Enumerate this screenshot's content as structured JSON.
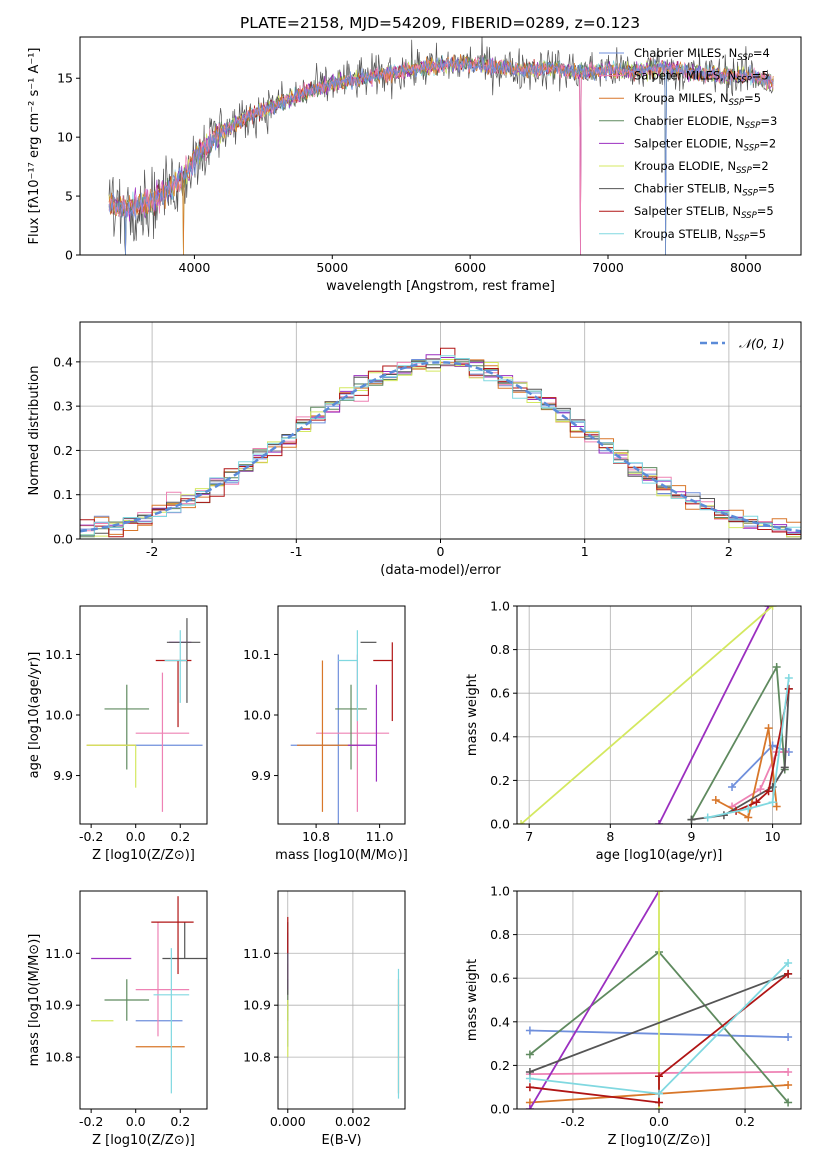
{
  "figure_title": "PLATE=2158, MJD=54209, FIBERID=0289, z=0.123",
  "legend": [
    {
      "label": "Chabrier MILES, N",
      "sub": "SSP",
      "tail": "=4",
      "color": "#6f8fdc"
    },
    {
      "label": "Salpeter MILES, N",
      "sub": "SSP",
      "tail": "=5",
      "color": "#ee82b4"
    },
    {
      "label": "Kroupa MILES, N",
      "sub": "SSP",
      "tail": "=5",
      "color": "#d8772a"
    },
    {
      "label": "Chabrier ELODIE, N",
      "sub": "SSP",
      "tail": "=3",
      "color": "#5f8a5f"
    },
    {
      "label": "Salpeter ELODIE, N",
      "sub": "SSP",
      "tail": "=2",
      "color": "#9b2fc0"
    },
    {
      "label": "Kroupa ELODIE, N",
      "sub": "SSP",
      "tail": "=2",
      "color": "#d4e860"
    },
    {
      "label": "Chabrier STELIB, N",
      "sub": "SSP",
      "tail": "=5",
      "color": "#555555"
    },
    {
      "label": "Salpeter STELIB, N",
      "sub": "SSP",
      "tail": "=5",
      "color": "#b01515"
    },
    {
      "label": "Kroupa STELIB, N",
      "sub": "SSP",
      "tail": "=5",
      "color": "#80d8e0"
    }
  ],
  "chart_data": [
    {
      "type": "line",
      "title": "PLATE=2158, MJD=54209, FIBERID=0289, z=0.123",
      "xlabel": "wavelength [Angstrom, rest frame]",
      "ylabel": "Flux [fλ10⁻¹⁷ erg cm⁻² s⁻¹ A⁻¹]",
      "xlim": [
        3170,
        8400
      ],
      "ylim": [
        0,
        18.5
      ],
      "xticks": [
        4000,
        5000,
        6000,
        7000,
        8000
      ],
      "yticks": [
        0,
        5,
        10,
        15
      ],
      "continuum": {
        "x": [
          3380,
          3500,
          3700,
          3900,
          4000,
          4200,
          4400,
          4600,
          4800,
          5000,
          5200,
          5400,
          5600,
          5800,
          6000,
          6200,
          6400,
          6600,
          6800,
          7000,
          7200,
          7400,
          7600,
          7800,
          8000,
          8200
        ],
        "y": [
          4.3,
          4.0,
          4.5,
          6.4,
          8.2,
          10.5,
          11.8,
          12.8,
          13.8,
          14.5,
          15.0,
          15.4,
          15.8,
          16.1,
          16.3,
          15.9,
          15.7,
          15.9,
          15.5,
          15.7,
          15.6,
          15.9,
          15.5,
          15.2,
          15.3,
          14.6
        ]
      },
      "dips": [
        {
          "x": 3500,
          "y": 0
        },
        {
          "x": 3920,
          "y": 0
        },
        {
          "x": 6800,
          "y": 0
        },
        {
          "x": 7420,
          "y": 0
        }
      ],
      "series_count": 9
    },
    {
      "type": "histogram",
      "xlabel": "(data-model)/error",
      "ylabel": "Normed distribution",
      "xlim": [
        -2.5,
        2.5
      ],
      "ylim": [
        0,
        0.49
      ],
      "xticks": [
        -2,
        -1,
        0,
        1,
        2
      ],
      "yticks": [
        0.0,
        0.1,
        0.2,
        0.3,
        0.4
      ],
      "grid": true,
      "legend": "upper right",
      "reference": {
        "label": "𝒩(0, 1)",
        "mean": 0,
        "sigma": 1,
        "color": "#5b8bd8"
      },
      "bin_width": 0.1,
      "series_count": 9
    },
    {
      "type": "errorbar",
      "xlabel": "Z [log10(Z/Z⊙)]",
      "ylabel": "age [log10(age/yr)]",
      "xlim": [
        -0.25,
        0.32
      ],
      "ylim": [
        9.82,
        10.18
      ],
      "xticks": [
        -0.2,
        0.0,
        0.2
      ],
      "yticks": [
        9.9,
        10.0,
        10.1
      ],
      "points": [
        {
          "x": 0.07,
          "y": 9.95,
          "xerr": [
            0.23,
            0.23
          ],
          "yerr": [
            0.0,
            0.0
          ],
          "color": "#6f8fdc"
        },
        {
          "x": 0.12,
          "y": 9.97,
          "xerr": [
            0.12,
            0.12
          ],
          "yerr": [
            0.13,
            0.1
          ],
          "color": "#ee82b4"
        },
        {
          "x": 0.0,
          "y": 9.95,
          "xerr": [
            0.22,
            0.0
          ],
          "yerr": [
            0.0,
            0.0
          ],
          "color": "#d8772a"
        },
        {
          "x": -0.04,
          "y": 10.01,
          "xerr": [
            0.1,
            0.1
          ],
          "yerr": [
            0.1,
            0.04
          ],
          "color": "#5f8a5f"
        },
        {
          "x": 0.2,
          "y": 10.12,
          "xerr": [
            0.05,
            0.05
          ],
          "yerr": [
            0.0,
            0.0
          ],
          "color": "#9b2fc0"
        },
        {
          "x": 0.0,
          "y": 9.95,
          "xerr": [
            0.22,
            0.0
          ],
          "yerr": [
            0.07,
            0.0
          ],
          "color": "#d4e860"
        },
        {
          "x": 0.23,
          "y": 10.12,
          "xerr": [
            0.09,
            0.06
          ],
          "yerr": [
            0.1,
            0.04
          ],
          "color": "#555555"
        },
        {
          "x": 0.19,
          "y": 10.09,
          "xerr": [
            0.1,
            0.06
          ],
          "yerr": [
            0.11,
            0.0
          ],
          "color": "#b01515"
        },
        {
          "x": 0.2,
          "y": 10.09,
          "xerr": [
            0.07,
            0.03
          ],
          "yerr": [
            0.07,
            0.05
          ],
          "color": "#80d8e0"
        }
      ]
    },
    {
      "type": "errorbar",
      "xlabel": "mass [log10(M/M⊙)]",
      "ylabel": "",
      "xlim": [
        10.68,
        11.08
      ],
      "ylim": [
        9.82,
        10.18
      ],
      "xticks": [
        10.8,
        11.0
      ],
      "yticks": [
        9.9,
        10.0,
        10.1
      ],
      "points": [
        {
          "x": 10.87,
          "y": 9.95,
          "xerr": [
            0.15,
            0.1
          ],
          "yerr": [
            0.15,
            0.15
          ],
          "color": "#6f8fdc"
        },
        {
          "x": 10.93,
          "y": 9.97,
          "xerr": [
            0.13,
            0.1
          ],
          "yerr": [
            0.13,
            0.13
          ],
          "color": "#ee82b4"
        },
        {
          "x": 10.82,
          "y": 9.95,
          "xerr": [
            0.08,
            0.11
          ],
          "yerr": [
            0.11,
            0.14
          ],
          "color": "#d8772a"
        },
        {
          "x": 10.91,
          "y": 10.01,
          "xerr": [
            0.05,
            0.05
          ],
          "yerr": [
            0.1,
            0.04
          ],
          "color": "#5f8a5f"
        },
        {
          "x": 10.99,
          "y": 9.95,
          "xerr": [
            0.09,
            0.0
          ],
          "yerr": [
            0.06,
            0.1
          ],
          "color": "#9b2fc0"
        },
        {
          "x": 10.87,
          "y": 9.95,
          "xerr": [
            0.0,
            0.0
          ],
          "yerr": [
            0.0,
            0.0
          ],
          "color": "#d4e860"
        },
        {
          "x": 10.99,
          "y": 10.12,
          "xerr": [
            0.05,
            0.0
          ],
          "yerr": [
            0.0,
            0.0
          ],
          "color": "#555555"
        },
        {
          "x": 11.04,
          "y": 10.09,
          "xerr": [
            0.06,
            0.0
          ],
          "yerr": [
            0.1,
            0.03
          ],
          "color": "#b01515"
        },
        {
          "x": 10.93,
          "y": 10.09,
          "xerr": [
            0.06,
            0.0
          ],
          "yerr": [
            0.1,
            0.05
          ],
          "color": "#80d8e0"
        }
      ]
    },
    {
      "type": "line",
      "xlabel": "age [log10(age/yr)]",
      "ylabel": "mass weight",
      "xlim": [
        6.85,
        10.35
      ],
      "ylim": [
        0,
        1
      ],
      "xticks": [
        7,
        8,
        9,
        10
      ],
      "yticks": [
        0.0,
        0.2,
        0.4,
        0.6,
        0.8,
        1.0
      ],
      "grid": true,
      "series": [
        {
          "color": "#6f8fdc",
          "x": [
            9.5,
            10.0,
            10.2
          ],
          "y": [
            0.17,
            0.36,
            0.33
          ]
        },
        {
          "color": "#ee82b4",
          "x": [
            9.5,
            9.85,
            10.05,
            10.15
          ],
          "y": [
            0.08,
            0.16,
            0.33,
            0.33
          ]
        },
        {
          "color": "#d8772a",
          "x": [
            9.3,
            9.7,
            9.95,
            10.05
          ],
          "y": [
            0.11,
            0.03,
            0.44,
            0.08
          ]
        },
        {
          "color": "#5f8a5f",
          "x": [
            9.0,
            10.05,
            10.15
          ],
          "y": [
            0.02,
            0.72,
            0.25
          ]
        },
        {
          "color": "#9b2fc0",
          "x": [
            8.6,
            9.95
          ],
          "y": [
            0.0,
            1.0
          ]
        },
        {
          "color": "#d4e860",
          "x": [
            6.9,
            10.0
          ],
          "y": [
            0.0,
            1.0
          ]
        },
        {
          "color": "#555555",
          "x": [
            9.0,
            9.4,
            10.0,
            10.15,
            10.2
          ],
          "y": [
            0.02,
            0.04,
            0.17,
            0.26,
            0.62
          ]
        },
        {
          "color": "#b01515",
          "x": [
            9.55,
            9.8,
            9.95,
            10.2
          ],
          "y": [
            0.06,
            0.1,
            0.15,
            0.62
          ]
        },
        {
          "color": "#80d8e0",
          "x": [
            9.2,
            9.7,
            10.0,
            10.2
          ],
          "y": [
            0.03,
            0.07,
            0.1,
            0.67
          ]
        }
      ]
    },
    {
      "type": "errorbar",
      "xlabel": "Z [log10(Z/Z⊙)]",
      "ylabel": "mass [log10(M/M⊙)]",
      "xlim": [
        -0.25,
        0.32
      ],
      "ylim": [
        10.7,
        11.12
      ],
      "xticks": [
        -0.2,
        0.0,
        0.2
      ],
      "yticks": [
        10.8,
        10.9,
        11.0
      ],
      "points": [
        {
          "x": 0.07,
          "y": 10.87,
          "xerr": [
            0.07,
            0.14
          ],
          "yerr": [
            0.0,
            0.0
          ],
          "color": "#6f8fdc"
        },
        {
          "x": 0.1,
          "y": 10.93,
          "xerr": [
            0.1,
            0.14
          ],
          "yerr": [
            0.09,
            0.13
          ],
          "color": "#ee82b4"
        },
        {
          "x": 0.0,
          "y": 10.82,
          "xerr": [
            0.0,
            0.22
          ],
          "yerr": [
            0.0,
            0.0
          ],
          "color": "#d8772a"
        },
        {
          "x": -0.04,
          "y": 10.91,
          "xerr": [
            0.1,
            0.1
          ],
          "yerr": [
            0.04,
            0.04
          ],
          "color": "#5f8a5f"
        },
        {
          "x": -0.1,
          "y": 10.99,
          "xerr": [
            0.1,
            0.08
          ],
          "yerr": [
            0.0,
            0.0
          ],
          "color": "#9b2fc0"
        },
        {
          "x": -0.1,
          "y": 10.87,
          "xerr": [
            0.1,
            0.0
          ],
          "yerr": [
            0.0,
            0.0
          ],
          "color": "#d4e860"
        },
        {
          "x": 0.22,
          "y": 10.99,
          "xerr": [
            0.1,
            0.1
          ],
          "yerr": [
            0.0,
            0.07
          ],
          "color": "#555555"
        },
        {
          "x": 0.19,
          "y": 11.06,
          "xerr": [
            0.12,
            0.07
          ],
          "yerr": [
            0.1,
            0.05
          ],
          "color": "#b01515"
        },
        {
          "x": 0.16,
          "y": 10.92,
          "xerr": [
            0.08,
            0.08
          ],
          "yerr": [
            0.19,
            0.09
          ],
          "color": "#80d8e0"
        }
      ]
    },
    {
      "type": "errorbar",
      "xlabel": "E(B-V)",
      "ylabel": "",
      "xlim": [
        -0.0003,
        0.0036
      ],
      "ylim": [
        10.7,
        11.12
      ],
      "xticks": [
        0.0,
        0.002
      ],
      "yticks": [
        10.8,
        10.9,
        11.0
      ],
      "grid": true,
      "points": [
        {
          "x": 0.0,
          "y": 10.87,
          "xerr": [
            0,
            0
          ],
          "yerr": [
            0.05,
            0.03
          ],
          "color": "#6f8fdc"
        },
        {
          "x": 0.0,
          "y": 10.93,
          "xerr": [
            0,
            0
          ],
          "yerr": [
            0.04,
            0.05
          ],
          "color": "#ee82b4"
        },
        {
          "x": 0.0034,
          "y": 10.82,
          "xerr": [
            0,
            0
          ],
          "yerr": [
            0.09,
            0.13
          ],
          "color": "#d8772a"
        },
        {
          "x": 0.0,
          "y": 10.91,
          "xerr": [
            0,
            0
          ],
          "yerr": [
            0.04,
            0.04
          ],
          "color": "#5f8a5f"
        },
        {
          "x": 0.0,
          "y": 10.99,
          "xerr": [
            0,
            0
          ],
          "yerr": [
            0.06,
            0.05
          ],
          "color": "#9b2fc0"
        },
        {
          "x": 0.0,
          "y": 10.87,
          "xerr": [
            0,
            0
          ],
          "yerr": [
            0.07,
            0.04
          ],
          "color": "#d4e860"
        },
        {
          "x": 0.0,
          "y": 10.99,
          "xerr": [
            0,
            0
          ],
          "yerr": [
            0.07,
            0.07
          ],
          "color": "#555555"
        },
        {
          "x": 0.0,
          "y": 11.06,
          "xerr": [
            0,
            0
          ],
          "yerr": [
            0.06,
            0.01
          ],
          "color": "#b01515"
        },
        {
          "x": 0.0034,
          "y": 10.92,
          "xerr": [
            0,
            0
          ],
          "yerr": [
            0.2,
            0.05
          ],
          "color": "#80d8e0"
        }
      ]
    },
    {
      "type": "line",
      "xlabel": "Z [log10(Z/Z⊙)]",
      "ylabel": "mass weight",
      "xlim": [
        -0.33,
        0.33
      ],
      "ylim": [
        0,
        1
      ],
      "xticks": [
        -0.2,
        0.0,
        0.2
      ],
      "yticks": [
        0.0,
        0.2,
        0.4,
        0.6,
        0.8,
        1.0
      ],
      "grid": true,
      "series": [
        {
          "color": "#6f8fdc",
          "x": [
            -0.3,
            0.3
          ],
          "y": [
            0.36,
            0.33
          ]
        },
        {
          "color": "#ee82b4",
          "x": [
            -0.3,
            0.3
          ],
          "y": [
            0.16,
            0.17
          ]
        },
        {
          "color": "#d8772a",
          "x": [
            -0.3,
            0.3
          ],
          "y": [
            0.03,
            0.11
          ]
        },
        {
          "color": "#5f8a5f",
          "x": [
            -0.3,
            0.0,
            0.3
          ],
          "y": [
            0.25,
            0.72,
            0.03
          ]
        },
        {
          "color": "#9b2fc0",
          "x": [
            -0.3,
            0.0
          ],
          "y": [
            0.0,
            1.0
          ]
        },
        {
          "color": "#d4e860",
          "x": [
            0.0,
            0.0
          ],
          "y": [
            0.0,
            1.0
          ]
        },
        {
          "color": "#555555",
          "x": [
            -0.3,
            0.3
          ],
          "y": [
            0.17,
            0.62
          ]
        },
        {
          "color": "#b01515",
          "x": [
            -0.3,
            0.0,
            0.0,
            0.3
          ],
          "y": [
            0.1,
            0.03,
            0.15,
            0.62
          ]
        },
        {
          "color": "#80d8e0",
          "x": [
            -0.3,
            0.0,
            0.3
          ],
          "y": [
            0.14,
            0.07,
            0.67
          ]
        }
      ]
    }
  ]
}
